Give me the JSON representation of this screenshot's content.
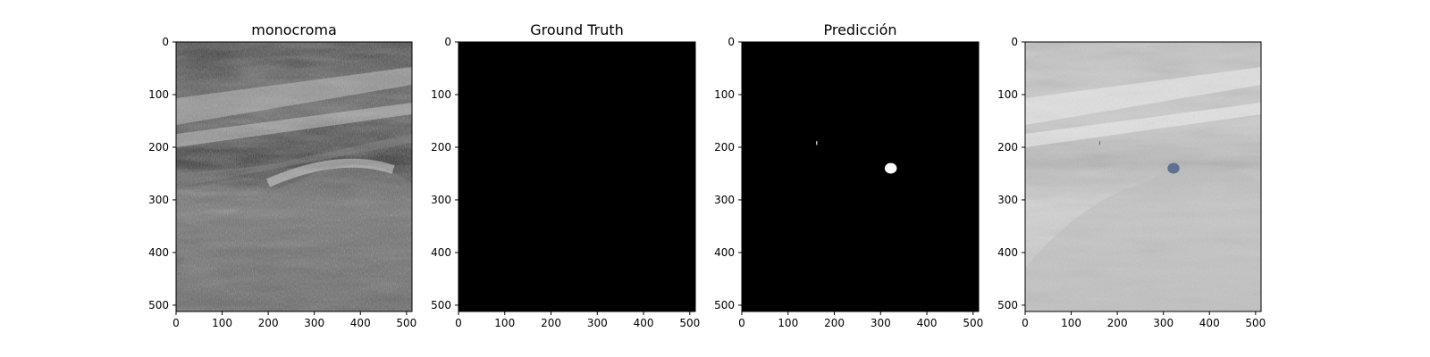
{
  "panels": [
    {
      "title": "monocroma",
      "type": "ultrasound-grayscale"
    },
    {
      "title": "Ground Truth",
      "type": "mask-empty"
    },
    {
      "title": "Predicción",
      "type": "mask-prediction"
    },
    {
      "title": "",
      "type": "overlay"
    }
  ],
  "axis": {
    "x_ticks": [
      "0",
      "100",
      "200",
      "300",
      "400",
      "500"
    ],
    "y_ticks": [
      "0",
      "100",
      "200",
      "300",
      "400",
      "500"
    ],
    "x_range": [
      0,
      512
    ],
    "y_range": [
      0,
      512
    ]
  },
  "prediction_blobs": [
    {
      "cx": 322,
      "cy": 240,
      "rx": 13,
      "ry": 10
    },
    {
      "cx": 162,
      "cy": 192,
      "rx": 1,
      "ry": 4
    }
  ],
  "colors": {
    "mask_bg": "#000000",
    "mask_fg": "#ffffff",
    "overlay_blob": "#5f7090"
  }
}
